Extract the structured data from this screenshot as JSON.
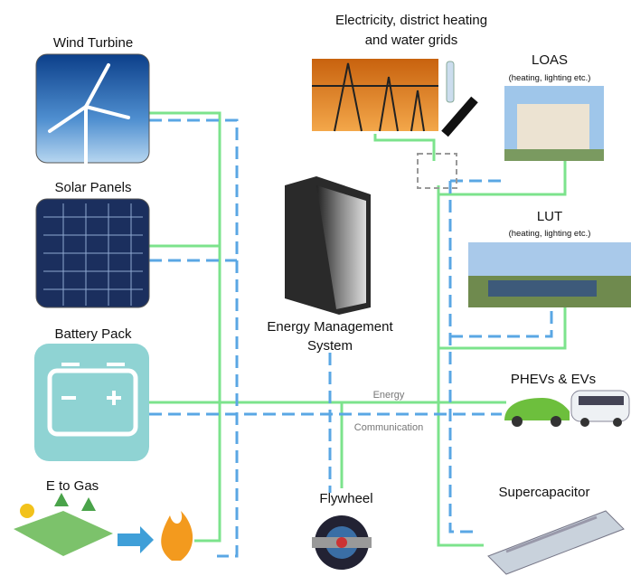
{
  "nodes": [
    {
      "label": "Wind Turbine"
    },
    {
      "label": "Solar Panels"
    },
    {
      "label": "Battery Pack"
    },
    {
      "label": "E to Gas"
    },
    {
      "label": [
        "Electricity, district heating",
        "and water grids"
      ]
    },
    {
      "label": "LOAS",
      "sublabel": "(heating, lighting etc.)"
    },
    {
      "label": "LUT",
      "sublabel": "(heating, lighting etc.)"
    },
    {
      "label": [
        "Energy Management",
        "System"
      ]
    },
    {
      "label": "PHEVs & EVs"
    },
    {
      "label": "Flywheel"
    },
    {
      "label": "Supercapacitor"
    }
  ],
  "links": {
    "energy": "Energy",
    "communication": "Communication"
  }
}
